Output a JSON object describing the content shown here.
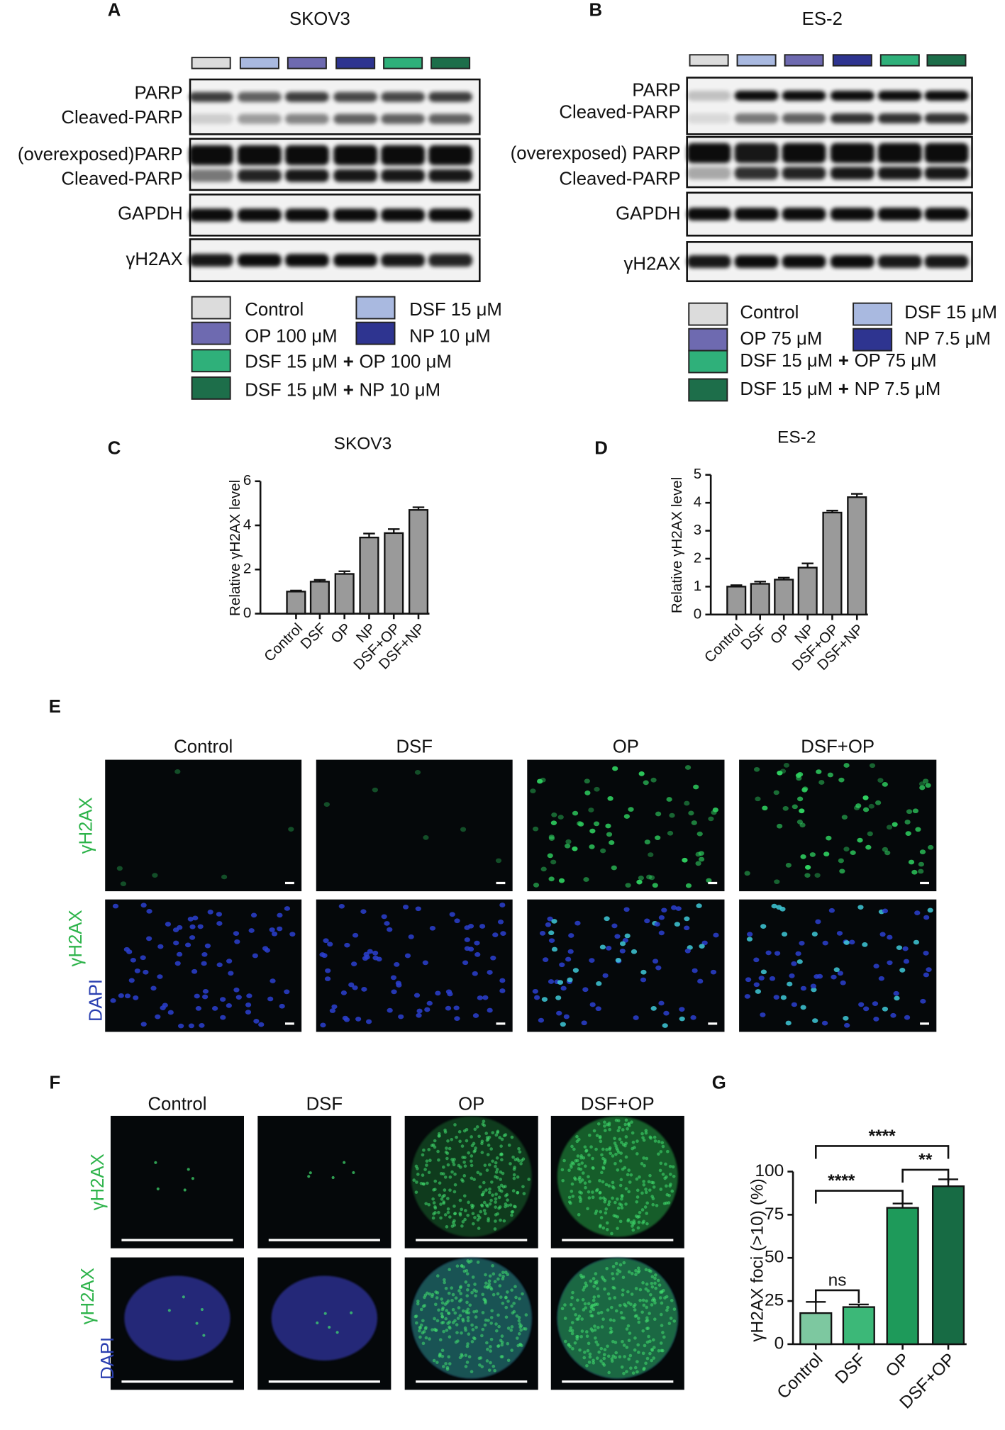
{
  "panel_labels": [
    "A",
    "B",
    "C",
    "D",
    "E",
    "F",
    "G"
  ],
  "blots": [
    {
      "title": "SKOV3",
      "colors": [
        "#dcdcdc",
        "#a9b9e0",
        "#6e6ab0",
        "#2e3490",
        "#2fb07a",
        "#1d6e4a"
      ],
      "rows": [
        [
          "PARP",
          "Cleaved-PARP"
        ],
        [
          "(overexposed)PARP",
          "Cleaved-PARP"
        ],
        [
          "GAPDH"
        ],
        [
          "γH2AX"
        ]
      ],
      "legend": [
        [
          "Control"
        ],
        [
          "DSF 15 μM"
        ],
        [
          "OP 100 μM"
        ],
        [
          "NP 10 μM"
        ],
        [
          "DSF 15 μM",
          "+",
          "OP 100 μM"
        ],
        [
          "DSF 15 μM",
          "+",
          "NP 10 μM"
        ]
      ]
    },
    {
      "title": "ES-2",
      "colors": [
        "#dcdcdc",
        "#a9b9e0",
        "#6e6ab0",
        "#2e3490",
        "#2fb07a",
        "#1d6e4a"
      ],
      "rows": [
        [
          "PARP",
          "Cleaved-PARP"
        ],
        [
          "(overexposed) PARP",
          "Cleaved-PARP"
        ],
        [
          "GAPDH"
        ],
        [
          "γH2AX"
        ]
      ],
      "legend": [
        [
          "Control"
        ],
        [
          "DSF 15 μM"
        ],
        [
          "OP 75 μM"
        ],
        [
          "NP 7.5 μM"
        ],
        [
          "DSF 15 μM",
          "+",
          "OP 75 μM"
        ],
        [
          "DSF 15 μM",
          "+",
          "NP 7.5 μM"
        ]
      ]
    }
  ],
  "chart_data": [
    {
      "type": "bar",
      "title": "SKOV3",
      "y_label": "Relative γH2AX level",
      "categories": [
        "Control",
        "DSF",
        "OP",
        "NP",
        "DSF+OP",
        "DSF+NP"
      ],
      "series": [
        {
          "color": "#9a9a9a",
          "values": [
            1,
            1.45,
            1.8,
            3.45,
            3.65,
            4.7
          ],
          "errors": [
            0.05,
            0.08,
            0.12,
            0.18,
            0.18,
            0.12
          ]
        }
      ],
      "ylim": [
        0,
        6
      ],
      "yticks": [
        0,
        2,
        4,
        6
      ]
    },
    {
      "type": "bar",
      "title": "ES-2",
      "y_label": "Relative γH2AX level",
      "categories": [
        "Control",
        "DSF",
        "OP",
        "NP",
        "DSF+OP",
        "DSF+NP"
      ],
      "series": [
        {
          "color": "#9a9a9a",
          "values": [
            1,
            1.1,
            1.25,
            1.68,
            3.65,
            4.2
          ],
          "errors": [
            0.05,
            0.08,
            0.07,
            0.15,
            0.07,
            0.12
          ]
        }
      ],
      "ylim": [
        0,
        5
      ],
      "yticks": [
        0,
        1,
        2,
        3,
        4,
        5
      ]
    },
    {
      "type": "bar",
      "y_label": "γH2AX foci (>10) (%)",
      "categories": [
        "Control",
        "DSF",
        "OP",
        "DSF+OP"
      ],
      "series": [
        {
          "colors": [
            "#7dc8a0",
            "#3cb878",
            "#1e9a5a",
            "#176b44"
          ],
          "values": [
            18,
            21.5,
            79,
            91.5
          ],
          "errors": [
            6.5,
            1.5,
            2.5,
            4
          ]
        }
      ],
      "ylim": [
        0,
        100
      ],
      "yticks": [
        0,
        25,
        50,
        75,
        100
      ],
      "annotations": [
        "****",
        "****",
        "**",
        "ns"
      ]
    }
  ],
  "immunofluorescence": [
    {
      "columns": [
        "Control",
        "DSF",
        "OP",
        "DSF+OP"
      ],
      "row_labels": [
        [
          "γH2AX"
        ],
        [
          "γH2AX",
          "DAPI"
        ]
      ]
    },
    {
      "columns": [
        "Control",
        "DSF",
        "OP",
        "DSF+OP"
      ],
      "row_labels": [
        [
          "γH2AX"
        ],
        [
          "γH2AX",
          "DAPI"
        ]
      ]
    }
  ]
}
